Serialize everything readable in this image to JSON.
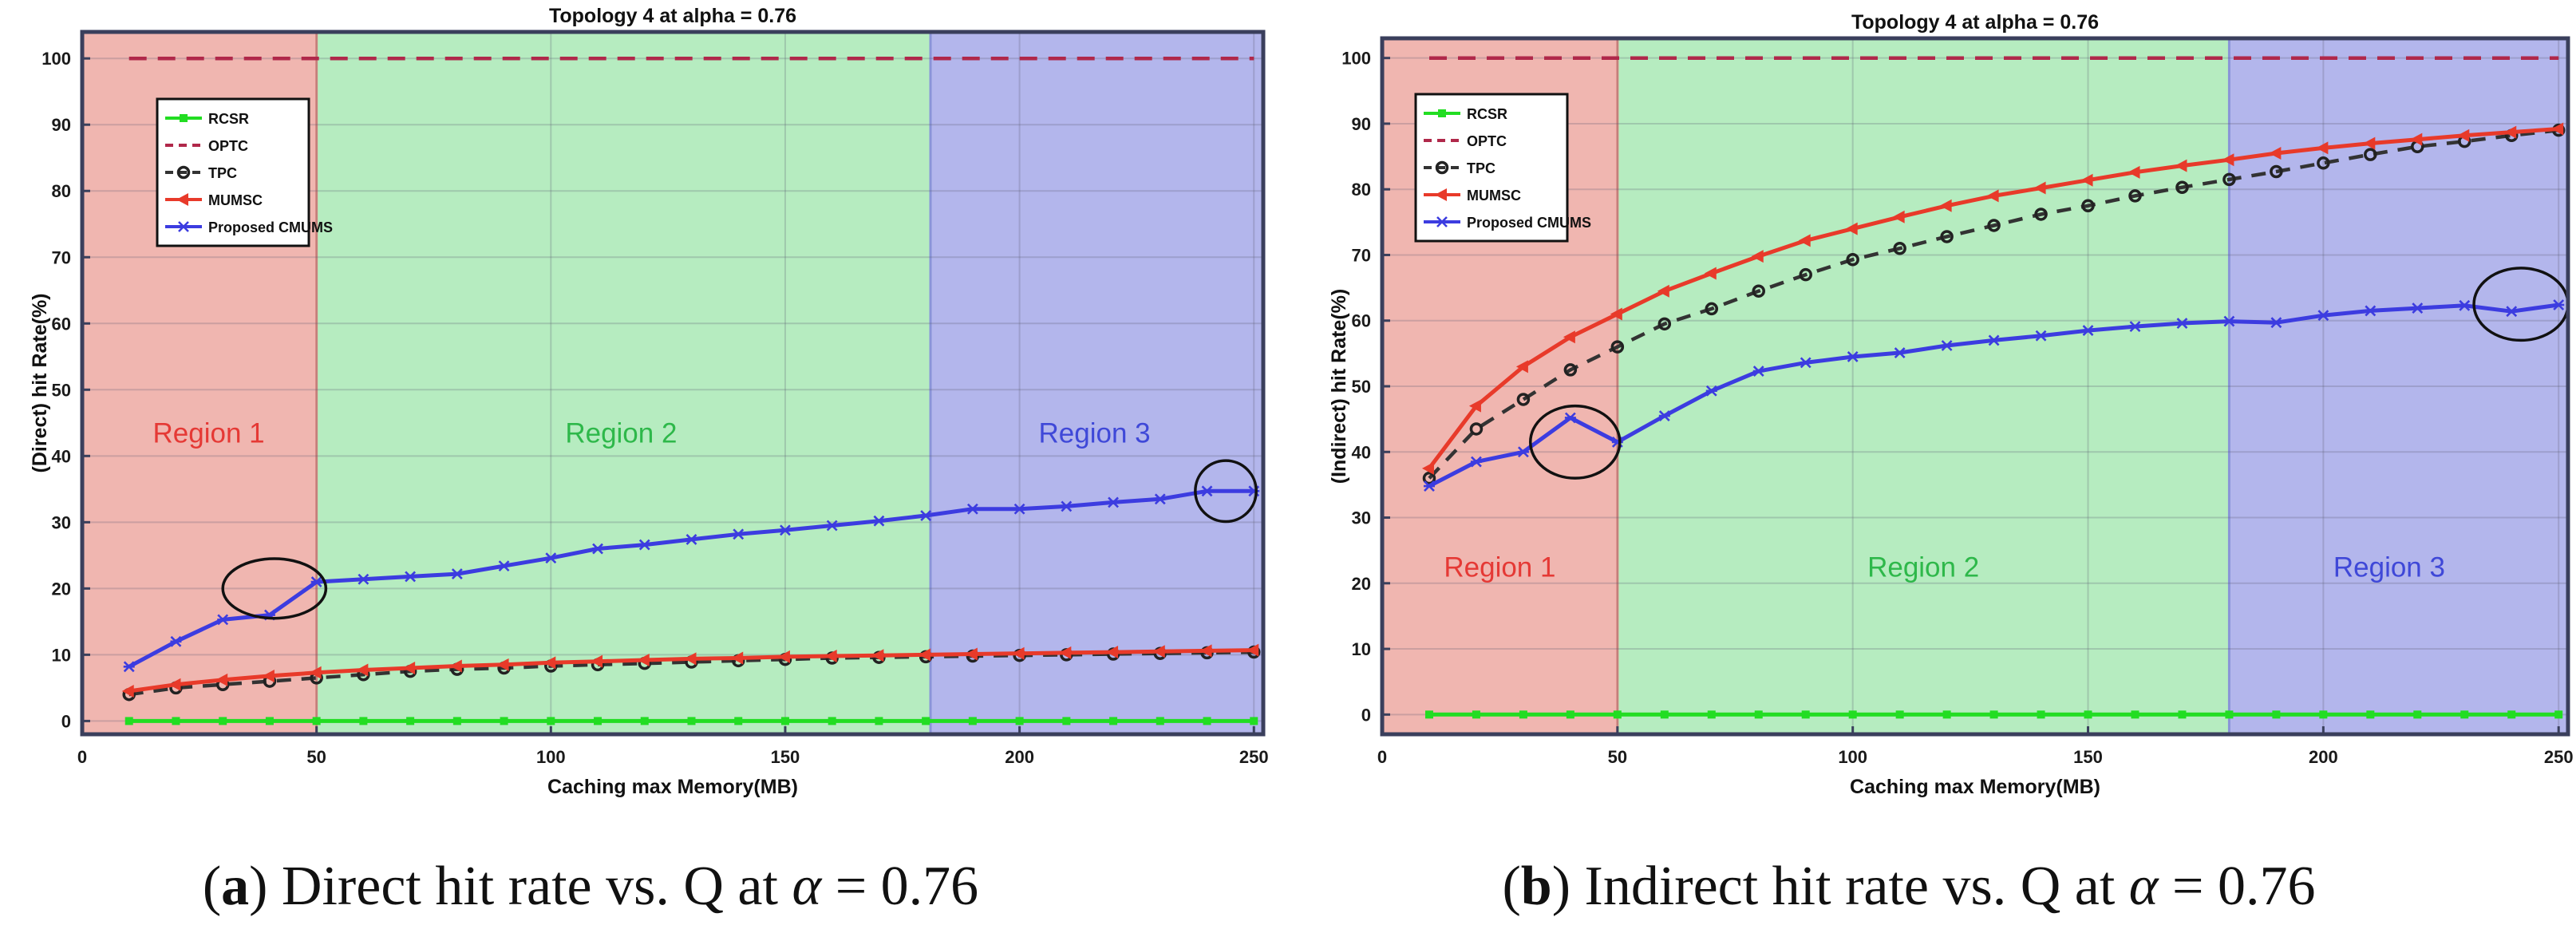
{
  "figure": {
    "caption_a_label": "a",
    "caption_a_text": ") Direct hit rate vs. Q at",
    "caption_b_label": "b",
    "caption_b_text": ") Indirect hit rate vs. Q at",
    "caption_alpha_symbol": "α",
    "caption_alpha_value": "= 0.76"
  },
  "chart_data": [
    {
      "type": "line",
      "title": "Topology 4 at alpha = 0.76",
      "xlabel": "Caching max Memory(MB)",
      "ylabel": "(Direct) hit Rate(%)",
      "xlim": [
        0,
        252
      ],
      "ylim": [
        -2,
        104
      ],
      "xticks": [
        0,
        50,
        100,
        150,
        200,
        250
      ],
      "yticks": [
        0,
        10,
        20,
        30,
        40,
        50,
        60,
        70,
        80,
        90,
        100
      ],
      "grid": true,
      "legend_position": "top-left",
      "regions": [
        {
          "label": "Region 1",
          "from": 0,
          "to": 50,
          "color": "#f0b6b0",
          "text_color": "#e53935",
          "label_x": 27,
          "label_y": 42
        },
        {
          "label": "Region 2",
          "from": 50,
          "to": 181,
          "color": "#b6ecc0",
          "text_color": "#2eb84a",
          "label_x": 115,
          "label_y": 42
        },
        {
          "label": "Region 3",
          "from": 181,
          "to": 252,
          "color": "#b3b6ec",
          "text_color": "#3f48d8",
          "label_x": 216,
          "label_y": 42
        }
      ],
      "annotations": [
        {
          "type": "ellipse",
          "cx": 41,
          "cy": 20,
          "rx": 11,
          "ry": 4.5
        },
        {
          "type": "ellipse",
          "cx": 244,
          "cy": 34.7,
          "rx": 6.5,
          "ry": 4.6
        }
      ],
      "series": [
        {
          "name": "RCSR",
          "color": "#22dd22",
          "marker": "square",
          "dash": false,
          "x": [
            10,
            20,
            30,
            40,
            50,
            60,
            70,
            80,
            90,
            100,
            110,
            120,
            130,
            140,
            150,
            160,
            170,
            180,
            190,
            200,
            210,
            220,
            230,
            240,
            250
          ],
          "y": [
            0,
            0,
            0,
            0,
            0,
            0,
            0,
            0,
            0,
            0,
            0,
            0,
            0,
            0,
            0,
            0,
            0,
            0,
            0,
            0,
            0,
            0,
            0,
            0,
            0
          ]
        },
        {
          "name": "OPTC",
          "color": "#b0284a",
          "marker": "none",
          "dash": true,
          "x": [
            10,
            250
          ],
          "y": [
            100,
            100
          ]
        },
        {
          "name": "TPC",
          "color": "#333333",
          "marker": "circle",
          "dash": true,
          "x": [
            10,
            20,
            30,
            40,
            50,
            60,
            70,
            80,
            90,
            100,
            110,
            120,
            130,
            140,
            150,
            160,
            170,
            180,
            190,
            200,
            210,
            220,
            230,
            240,
            250
          ],
          "y": [
            4,
            5,
            5.5,
            6,
            6.5,
            7,
            7.5,
            7.8,
            8,
            8.3,
            8.5,
            8.7,
            8.9,
            9.1,
            9.3,
            9.5,
            9.6,
            9.7,
            9.8,
            9.9,
            10,
            10.1,
            10.2,
            10.3,
            10.4
          ]
        },
        {
          "name": "MUMSC",
          "color": "#e83a2a",
          "marker": "triangle",
          "dash": false,
          "x": [
            10,
            20,
            30,
            40,
            50,
            60,
            70,
            80,
            90,
            100,
            110,
            120,
            130,
            140,
            150,
            160,
            170,
            180,
            190,
            200,
            210,
            220,
            230,
            240,
            250
          ],
          "y": [
            4.5,
            5.5,
            6.2,
            6.8,
            7.3,
            7.7,
            8,
            8.3,
            8.5,
            8.8,
            9,
            9.2,
            9.4,
            9.5,
            9.7,
            9.8,
            9.9,
            10,
            10.1,
            10.2,
            10.3,
            10.4,
            10.5,
            10.6,
            10.7
          ]
        },
        {
          "name": "Proposed CMUMS",
          "color": "#3c3ce0",
          "marker": "star",
          "dash": false,
          "x": [
            10,
            20,
            30,
            40,
            50,
            60,
            70,
            80,
            90,
            100,
            110,
            120,
            130,
            140,
            150,
            160,
            170,
            180,
            190,
            200,
            210,
            220,
            230,
            240,
            250
          ],
          "y": [
            8.2,
            12,
            15.3,
            16,
            21,
            21.4,
            21.8,
            22.2,
            23.4,
            24.6,
            26,
            26.6,
            27.4,
            28.2,
            28.8,
            29.5,
            30.2,
            31,
            32,
            32,
            32.4,
            33,
            33.5,
            34.7,
            34.7
          ]
        }
      ]
    },
    {
      "type": "line",
      "title": "Topology 4 at alpha = 0.76",
      "xlabel": "Caching max Memory(MB)",
      "ylabel": "(Indirect) hit Rate(%)",
      "xlim": [
        0,
        252
      ],
      "ylim": [
        -3,
        103
      ],
      "xticks": [
        0,
        50,
        100,
        150,
        200,
        250
      ],
      "yticks": [
        0,
        10,
        20,
        30,
        40,
        50,
        60,
        70,
        80,
        90,
        100
      ],
      "grid": true,
      "legend_position": "top-left",
      "regions": [
        {
          "label": "Region 1",
          "from": 0,
          "to": 50,
          "color": "#f0b6b0",
          "text_color": "#e53935",
          "label_x": 25,
          "label_y": 21
        },
        {
          "label": "Region 2",
          "from": 50,
          "to": 180,
          "color": "#b6ecc0",
          "text_color": "#2eb84a",
          "label_x": 115,
          "label_y": 21
        },
        {
          "label": "Region 3",
          "from": 180,
          "to": 252,
          "color": "#b3b6ec",
          "text_color": "#3f48d8",
          "label_x": 214,
          "label_y": 21
        }
      ],
      "annotations": [
        {
          "type": "ellipse",
          "cx": 41,
          "cy": 41.5,
          "rx": 9.5,
          "ry": 5.5
        },
        {
          "type": "ellipse",
          "cx": 242,
          "cy": 62.5,
          "rx": 10,
          "ry": 5.5
        }
      ],
      "series": [
        {
          "name": "RCSR",
          "color": "#22dd22",
          "marker": "square",
          "dash": false,
          "x": [
            10,
            20,
            30,
            40,
            50,
            60,
            70,
            80,
            90,
            100,
            110,
            120,
            130,
            140,
            150,
            160,
            170,
            180,
            190,
            200,
            210,
            220,
            230,
            240,
            250
          ],
          "y": [
            0,
            0,
            0,
            0,
            0,
            0,
            0,
            0,
            0,
            0,
            0,
            0,
            0,
            0,
            0,
            0,
            0,
            0,
            0,
            0,
            0,
            0,
            0,
            0,
            0
          ]
        },
        {
          "name": "OPTC",
          "color": "#b0284a",
          "marker": "none",
          "dash": true,
          "x": [
            10,
            250
          ],
          "y": [
            100,
            100
          ]
        },
        {
          "name": "TPC",
          "color": "#333333",
          "marker": "circle",
          "dash": true,
          "x": [
            10,
            20,
            30,
            40,
            50,
            60,
            70,
            80,
            90,
            100,
            110,
            120,
            130,
            140,
            150,
            160,
            170,
            180,
            190,
            200,
            210,
            220,
            230,
            240,
            250
          ],
          "y": [
            36,
            43.5,
            48,
            52.5,
            56,
            59.5,
            61.8,
            64.5,
            67,
            69.3,
            71,
            72.8,
            74.5,
            76.2,
            77.5,
            79,
            80.3,
            81.5,
            82.7,
            84,
            85.3,
            86.5,
            87.3,
            88.2,
            89
          ]
        },
        {
          "name": "MUMSC",
          "color": "#e83a2a",
          "marker": "triangle",
          "dash": false,
          "x": [
            10,
            20,
            30,
            40,
            50,
            60,
            70,
            80,
            90,
            100,
            110,
            120,
            130,
            140,
            150,
            160,
            170,
            180,
            190,
            200,
            210,
            220,
            230,
            240,
            250
          ],
          "y": [
            37.5,
            47,
            53,
            57.5,
            61,
            64.5,
            67.2,
            69.8,
            72.2,
            74,
            75.8,
            77.5,
            79,
            80.2,
            81.4,
            82.6,
            83.6,
            84.5,
            85.5,
            86.3,
            87,
            87.6,
            88.2,
            88.7,
            89.2
          ]
        },
        {
          "name": "Proposed CMUMS",
          "color": "#3c3ce0",
          "marker": "star",
          "dash": false,
          "x": [
            10,
            20,
            30,
            40,
            50,
            60,
            70,
            80,
            90,
            100,
            110,
            120,
            130,
            140,
            150,
            160,
            170,
            180,
            190,
            200,
            210,
            220,
            230,
            240,
            250
          ],
          "y": [
            34.8,
            38.5,
            40,
            45.2,
            41.5,
            45.5,
            49.3,
            52.3,
            53.6,
            54.5,
            55.1,
            56.2,
            57,
            57.7,
            58.5,
            59.1,
            59.6,
            59.9,
            59.7,
            60.8,
            61.5,
            61.9,
            62.3,
            61.4,
            62.4
          ]
        }
      ]
    }
  ]
}
